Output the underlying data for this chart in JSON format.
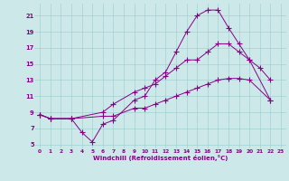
{
  "title": "",
  "xlabel": "Windchill (Refroidissement éolien,°C)",
  "bg_color": "#cce8e8",
  "line_color": "#880088",
  "xlim": [
    -0.5,
    23.5
  ],
  "ylim": [
    4.5,
    22.5
  ],
  "yticks": [
    5,
    7,
    9,
    11,
    13,
    15,
    17,
    19,
    21
  ],
  "xticks": [
    0,
    1,
    2,
    3,
    4,
    5,
    6,
    7,
    8,
    9,
    10,
    11,
    12,
    13,
    14,
    15,
    16,
    17,
    18,
    19,
    20,
    21,
    22,
    23
  ],
  "top_x": [
    0,
    1,
    3,
    4,
    5,
    6,
    7,
    9,
    10,
    11,
    12,
    13,
    14,
    15,
    16,
    17,
    18,
    19,
    20,
    21,
    22
  ],
  "top_y": [
    8.7,
    8.2,
    8.2,
    6.5,
    5.3,
    7.5,
    8.0,
    10.5,
    11.0,
    13.0,
    14.0,
    16.5,
    19.0,
    21.0,
    21.7,
    21.7,
    19.5,
    17.5,
    15.5,
    14.5,
    13.0
  ],
  "mid_x": [
    0,
    1,
    3,
    6,
    7,
    9,
    10,
    11,
    12,
    13,
    14,
    15,
    16,
    17,
    18,
    19,
    20,
    22
  ],
  "mid_y": [
    8.7,
    8.2,
    8.2,
    9.0,
    10.0,
    11.5,
    12.0,
    12.5,
    13.5,
    14.5,
    15.5,
    15.5,
    16.5,
    17.5,
    17.5,
    16.5,
    15.5,
    10.5
  ],
  "bot_x": [
    0,
    1,
    3,
    6,
    7,
    9,
    10,
    11,
    12,
    13,
    14,
    15,
    16,
    17,
    18,
    19,
    20,
    22
  ],
  "bot_y": [
    8.7,
    8.2,
    8.2,
    8.5,
    8.5,
    9.5,
    9.5,
    10.0,
    10.5,
    11.0,
    11.5,
    12.0,
    12.5,
    13.0,
    13.2,
    13.2,
    13.0,
    10.5
  ]
}
